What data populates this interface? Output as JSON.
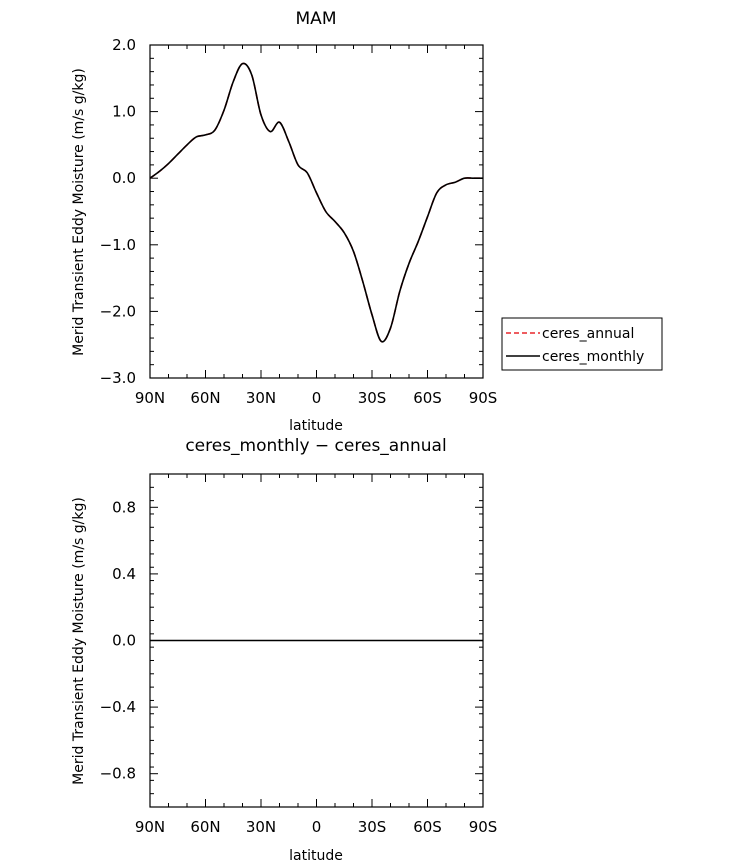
{
  "chart_data": [
    {
      "type": "line",
      "title": "MAM",
      "xlabel": "latitude",
      "ylabel": "Merid Transient Eddy Moisture (m/s g/kg)",
      "xlim": [
        90,
        -90
      ],
      "ylim": [
        -3.0,
        2.0
      ],
      "xticks": [
        90,
        60,
        30,
        0,
        -30,
        -60,
        -90
      ],
      "xtick_labels": [
        "90N",
        "60N",
        "30N",
        "0",
        "30S",
        "60S",
        "90S"
      ],
      "yticks": [
        2.0,
        1.0,
        0.0,
        -1.0,
        -2.0,
        -3.0
      ],
      "ytick_labels": [
        "2.0",
        "1.0",
        "0.0",
        "−1.0",
        "−2.0",
        "−3.0"
      ],
      "grid": false,
      "legend_position": "right",
      "x": [
        90,
        85,
        80,
        75,
        70,
        65,
        60,
        55,
        50,
        45,
        40,
        35,
        30,
        25,
        20,
        15,
        10,
        5,
        0,
        -5,
        -10,
        -15,
        -20,
        -25,
        -30,
        -35,
        -40,
        -45,
        -50,
        -55,
        -60,
        -65,
        -70,
        -75,
        -80,
        -85,
        -90
      ],
      "series": [
        {
          "name": "ceres_annual",
          "color": "#e8262b",
          "dash": "dashed",
          "values": [
            0.0,
            0.1,
            0.22,
            0.36,
            0.5,
            0.62,
            0.65,
            0.72,
            1.02,
            1.45,
            1.72,
            1.55,
            0.95,
            0.7,
            0.84,
            0.55,
            0.2,
            0.08,
            -0.22,
            -0.5,
            -0.65,
            -0.82,
            -1.1,
            -1.55,
            -2.05,
            -2.45,
            -2.25,
            -1.7,
            -1.28,
            -0.95,
            -0.58,
            -0.22,
            -0.1,
            -0.06,
            0.0,
            0.0,
            0.0
          ]
        },
        {
          "name": "ceres_monthly",
          "color": "#000000",
          "dash": "solid",
          "values": [
            0.0,
            0.1,
            0.22,
            0.36,
            0.5,
            0.62,
            0.65,
            0.72,
            1.02,
            1.45,
            1.72,
            1.55,
            0.95,
            0.7,
            0.84,
            0.55,
            0.2,
            0.08,
            -0.22,
            -0.5,
            -0.65,
            -0.82,
            -1.1,
            -1.55,
            -2.05,
            -2.45,
            -2.25,
            -1.7,
            -1.28,
            -0.95,
            -0.58,
            -0.22,
            -0.1,
            -0.06,
            0.0,
            0.0,
            0.0
          ]
        }
      ]
    },
    {
      "type": "line",
      "title": "ceres_monthly − ceres_annual",
      "xlabel": "latitude",
      "ylabel": "Merid Transient Eddy Moisture (m/s g/kg)",
      "xlim": [
        90,
        -90
      ],
      "ylim": [
        -1.0,
        1.0
      ],
      "xticks": [
        90,
        60,
        30,
        0,
        -30,
        -60,
        -90
      ],
      "xtick_labels": [
        "90N",
        "60N",
        "30N",
        "0",
        "30S",
        "60S",
        "90S"
      ],
      "yticks": [
        0.8,
        0.4,
        0.0,
        -0.4,
        -0.8
      ],
      "ytick_labels": [
        "0.8",
        "0.4",
        "0.0",
        "−0.4",
        "−0.8"
      ],
      "grid": false,
      "x": [
        90,
        -90
      ],
      "series": [
        {
          "color": "#000000",
          "dash": "solid",
          "values": [
            0.0,
            0.0
          ]
        }
      ]
    }
  ],
  "legend": {
    "items": [
      {
        "label": "ceres_annual",
        "color": "#e8262b",
        "dash": "dashed"
      },
      {
        "label": "ceres_monthly",
        "color": "#000000",
        "dash": "solid"
      }
    ]
  }
}
